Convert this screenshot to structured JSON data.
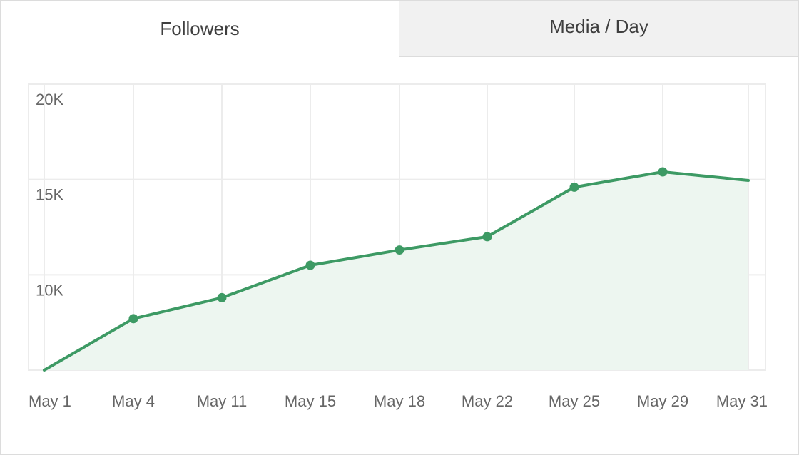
{
  "tabs": [
    {
      "label": "Followers",
      "active": true
    },
    {
      "label": "Media / Day",
      "active": false
    }
  ],
  "colors": {
    "line": "#3d9a64",
    "area": "#edf6f0",
    "grid": "#ececec",
    "inactive_tab": "#f1f1f1"
  },
  "chart_data": {
    "type": "area",
    "title": "",
    "xlabel": "",
    "ylabel": "",
    "categories": [
      "May 1",
      "May 4",
      "May 11",
      "May 15",
      "May 18",
      "May 22",
      "May 25",
      "May 29",
      "May 31"
    ],
    "values": [
      5000,
      7700,
      8800,
      10500,
      11300,
      12000,
      14600,
      15400,
      14950
    ],
    "markers": [
      false,
      true,
      true,
      true,
      true,
      true,
      true,
      true,
      false
    ],
    "ylim": [
      5000,
      20000
    ],
    "yticks": [
      {
        "value": 20000,
        "label": "20K"
      },
      {
        "value": 15000,
        "label": "15K"
      },
      {
        "value": 10000,
        "label": "10K"
      }
    ],
    "grid": true,
    "legend": "none"
  }
}
